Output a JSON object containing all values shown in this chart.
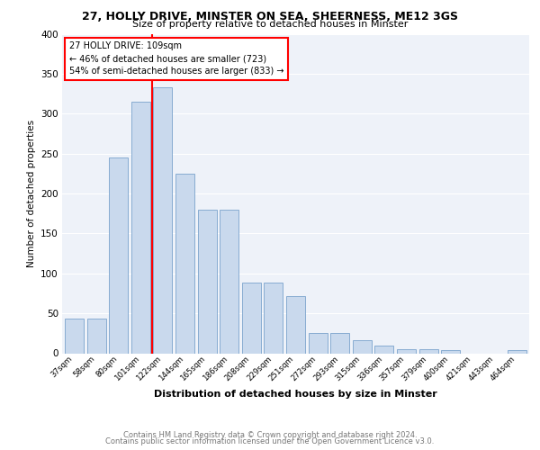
{
  "title1": "27, HOLLY DRIVE, MINSTER ON SEA, SHEERNESS, ME12 3GS",
  "title2": "Size of property relative to detached houses in Minster",
  "xlabel": "Distribution of detached houses by size in Minster",
  "ylabel": "Number of detached properties",
  "categories": [
    "37sqm",
    "58sqm",
    "80sqm",
    "101sqm",
    "122sqm",
    "144sqm",
    "165sqm",
    "186sqm",
    "208sqm",
    "229sqm",
    "251sqm",
    "272sqm",
    "293sqm",
    "315sqm",
    "336sqm",
    "357sqm",
    "379sqm",
    "400sqm",
    "421sqm",
    "443sqm",
    "464sqm"
  ],
  "values": [
    43,
    43,
    245,
    315,
    333,
    225,
    180,
    180,
    89,
    89,
    72,
    25,
    25,
    16,
    10,
    5,
    5,
    4,
    0,
    0,
    4
  ],
  "bar_color": "#c9d9ed",
  "bar_edge_color": "#7aa3cc",
  "annotation_lines": [
    "27 HOLLY DRIVE: 109sqm",
    "← 46% of detached houses are smaller (723)",
    "54% of semi-detached houses are larger (833) →"
  ],
  "annotation_box_color": "white",
  "annotation_box_edge_color": "red",
  "vline_color": "red",
  "vline_x_index": 3.5,
  "footer1": "Contains HM Land Registry data © Crown copyright and database right 2024.",
  "footer2": "Contains public sector information licensed under the Open Government Licence v3.0.",
  "bg_color": "#eef2f9",
  "ylim": [
    0,
    400
  ],
  "yticks": [
    0,
    50,
    100,
    150,
    200,
    250,
    300,
    350,
    400
  ]
}
